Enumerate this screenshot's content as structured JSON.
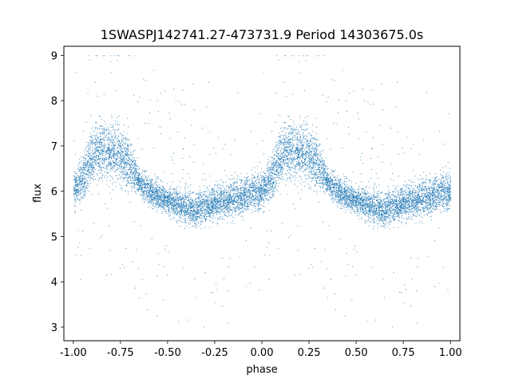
{
  "chart_data": {
    "type": "scatter",
    "title": "1SWASPJ142741.27-473731.9 Period 14303675.0s",
    "xlabel": "phase",
    "ylabel": "flux",
    "xlim": [
      -1.05,
      1.05
    ],
    "ylim": [
      2.7,
      9.2
    ],
    "xticks": [
      "-1.00",
      "-0.75",
      "-0.50",
      "-0.25",
      "0.00",
      "0.25",
      "0.50",
      "0.75",
      "1.00"
    ],
    "yticks": [
      "3",
      "4",
      "5",
      "6",
      "7",
      "8",
      "9"
    ],
    "grid": false,
    "point_color": "#1f77b4",
    "series": [
      {
        "profile_phase": [
          0.0,
          0.05,
          0.1,
          0.15,
          0.2,
          0.25,
          0.3,
          0.35,
          0.4,
          0.45,
          0.5,
          0.55,
          0.6,
          0.65,
          0.7,
          0.75,
          0.8,
          0.85,
          0.9,
          0.95,
          1.0
        ],
        "profile_flux": [
          6.0,
          6.3,
          6.8,
          6.9,
          6.9,
          6.8,
          6.6,
          6.2,
          6.0,
          5.9,
          5.8,
          5.75,
          5.65,
          5.6,
          5.7,
          5.75,
          5.8,
          5.85,
          5.9,
          6.0,
          6.0
        ],
        "profile_scatter": [
          0.45,
          0.55,
          0.7,
          0.75,
          0.7,
          0.75,
          0.55,
          0.35,
          0.35,
          0.35,
          0.35,
          0.4,
          0.45,
          0.45,
          0.45,
          0.4,
          0.4,
          0.45,
          0.45,
          0.45,
          0.45
        ]
      }
    ]
  }
}
